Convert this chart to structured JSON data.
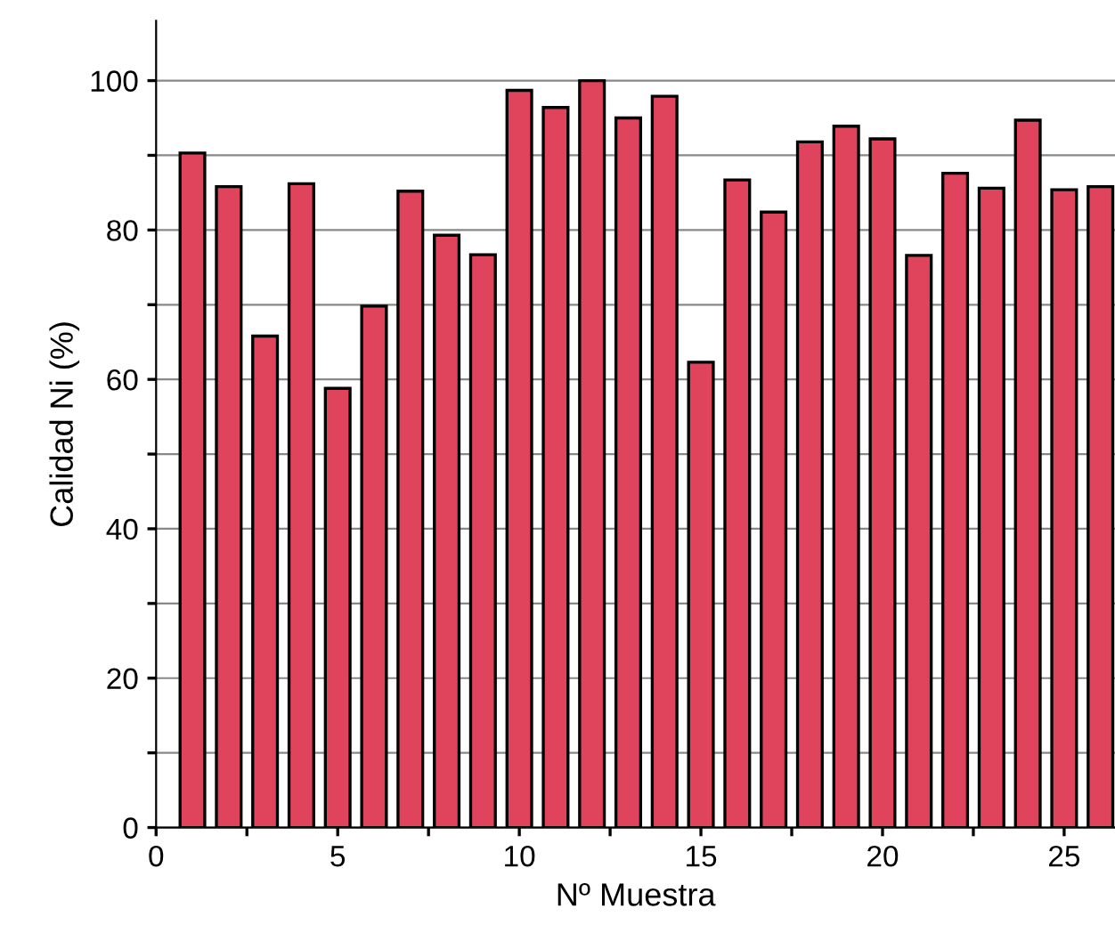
{
  "chart_data": {
    "type": "bar",
    "xlabel": "Nº Muestra",
    "ylabel": "Calidad Ni (%)",
    "x": [
      1,
      2,
      3,
      4,
      5,
      6,
      7,
      8,
      9,
      10,
      11,
      12,
      13,
      14,
      15,
      16,
      17,
      18,
      19,
      20,
      21,
      22,
      23,
      24,
      25,
      26
    ],
    "values": [
      90.3,
      85.8,
      65.8,
      86.2,
      58.8,
      69.8,
      85.2,
      79.3,
      76.7,
      98.7,
      96.4,
      100,
      95.0,
      97.9,
      62.3,
      86.7,
      82.4,
      91.8,
      93.9,
      92.2,
      76.6,
      87.6,
      85.6,
      94.7,
      85.4,
      85.8
    ],
    "color": "#e0435c",
    "xlim": [
      0,
      26.4
    ],
    "ylim": [
      0,
      108
    ],
    "xticks": [
      0,
      {
        "value": 2.5,
        "label": null
      },
      5,
      {
        "value": 7.5,
        "label": null
      },
      10,
      {
        "value": 12.5,
        "label": null
      },
      15,
      {
        "value": 17.5,
        "label": null
      },
      20,
      {
        "value": 22.5,
        "label": null
      },
      25
    ],
    "yticks": [
      0,
      {
        "value": 10,
        "label": null
      },
      20,
      {
        "value": 30,
        "label": null
      },
      40,
      {
        "value": 50,
        "label": null
      },
      60,
      {
        "value": 70,
        "label": null
      },
      80,
      {
        "value": 90,
        "label": null
      },
      100
    ],
    "grid": "y"
  }
}
